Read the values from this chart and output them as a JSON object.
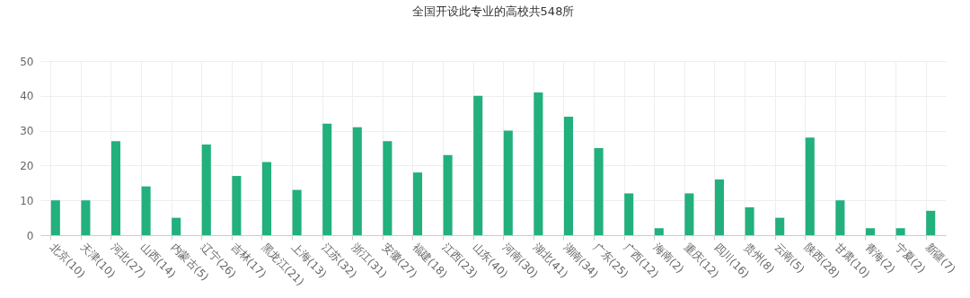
{
  "chart_data": {
    "type": "bar",
    "title": "全国开设此专业的高校共548所",
    "categories": [
      "北京(10)",
      "天津(10)",
      "河北(27)",
      "山西(14)",
      "内蒙古(5)",
      "辽宁(26)",
      "吉林(17)",
      "黑龙江(21)",
      "上海(13)",
      "江苏(32)",
      "浙江(31)",
      "安徽(27)",
      "福建(18)",
      "江西(23)",
      "山东(40)",
      "河南(30)",
      "湖北(41)",
      "湖南(34)",
      "广东(25)",
      "广西(12)",
      "海南(2)",
      "重庆(12)",
      "四川(16)",
      "贵州(8)",
      "云南(5)",
      "陕西(28)",
      "甘肃(10)",
      "青海(2)",
      "宁夏(2)",
      "新疆(7)"
    ],
    "values": [
      10,
      10,
      27,
      14,
      5,
      26,
      17,
      21,
      13,
      32,
      31,
      27,
      18,
      23,
      40,
      30,
      41,
      34,
      25,
      12,
      2,
      12,
      16,
      8,
      5,
      28,
      10,
      2,
      2,
      7
    ],
    "color": "#22b07d",
    "ylim": [
      0,
      50
    ],
    "yticks": [
      0,
      10,
      20,
      30,
      40,
      50
    ],
    "grid": true
  }
}
